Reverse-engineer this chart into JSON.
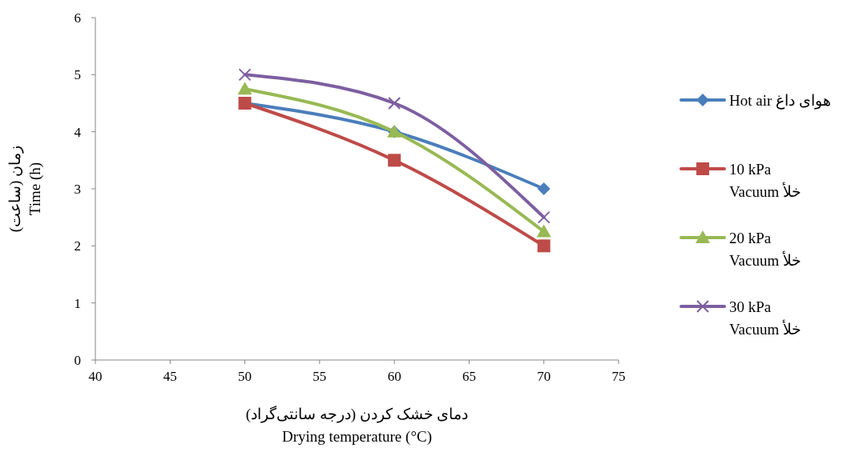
{
  "chart_data": {
    "type": "line",
    "xlabel": "دمای خشک کردن (درجه سانتی‌گراد)\nDrying temperature (°C)",
    "ylabel": "زمان (ساعت)\nTime (h)",
    "x": [
      50,
      60,
      70
    ],
    "xlim": [
      40,
      75
    ],
    "xticks": [
      40,
      45,
      50,
      55,
      60,
      65,
      70,
      75
    ],
    "ylim": [
      0,
      6
    ],
    "yticks": [
      0,
      1,
      2,
      3,
      4,
      5,
      6
    ],
    "grid": false,
    "legend": "right",
    "line_style": "solid",
    "series": [
      {
        "name": "Hot air هوای داغ",
        "color": "#4a7ebb",
        "marker": "diamond",
        "values": [
          4.5,
          4,
          3
        ]
      },
      {
        "name": "10 kPa\nVacuum خلأ",
        "color": "#be4b48",
        "marker": "square",
        "values": [
          4.5,
          3.5,
          2
        ]
      },
      {
        "name": "20 kPa\nVacuum خلأ",
        "color": "#98b954",
        "marker": "triangle",
        "values": [
          4.75,
          4,
          2.25
        ]
      },
      {
        "name": "30 kPa\nVacuum خلأ",
        "color": "#7d5fa0",
        "marker": "cross",
        "values": [
          5,
          4.5,
          2.5
        ]
      }
    ]
  }
}
